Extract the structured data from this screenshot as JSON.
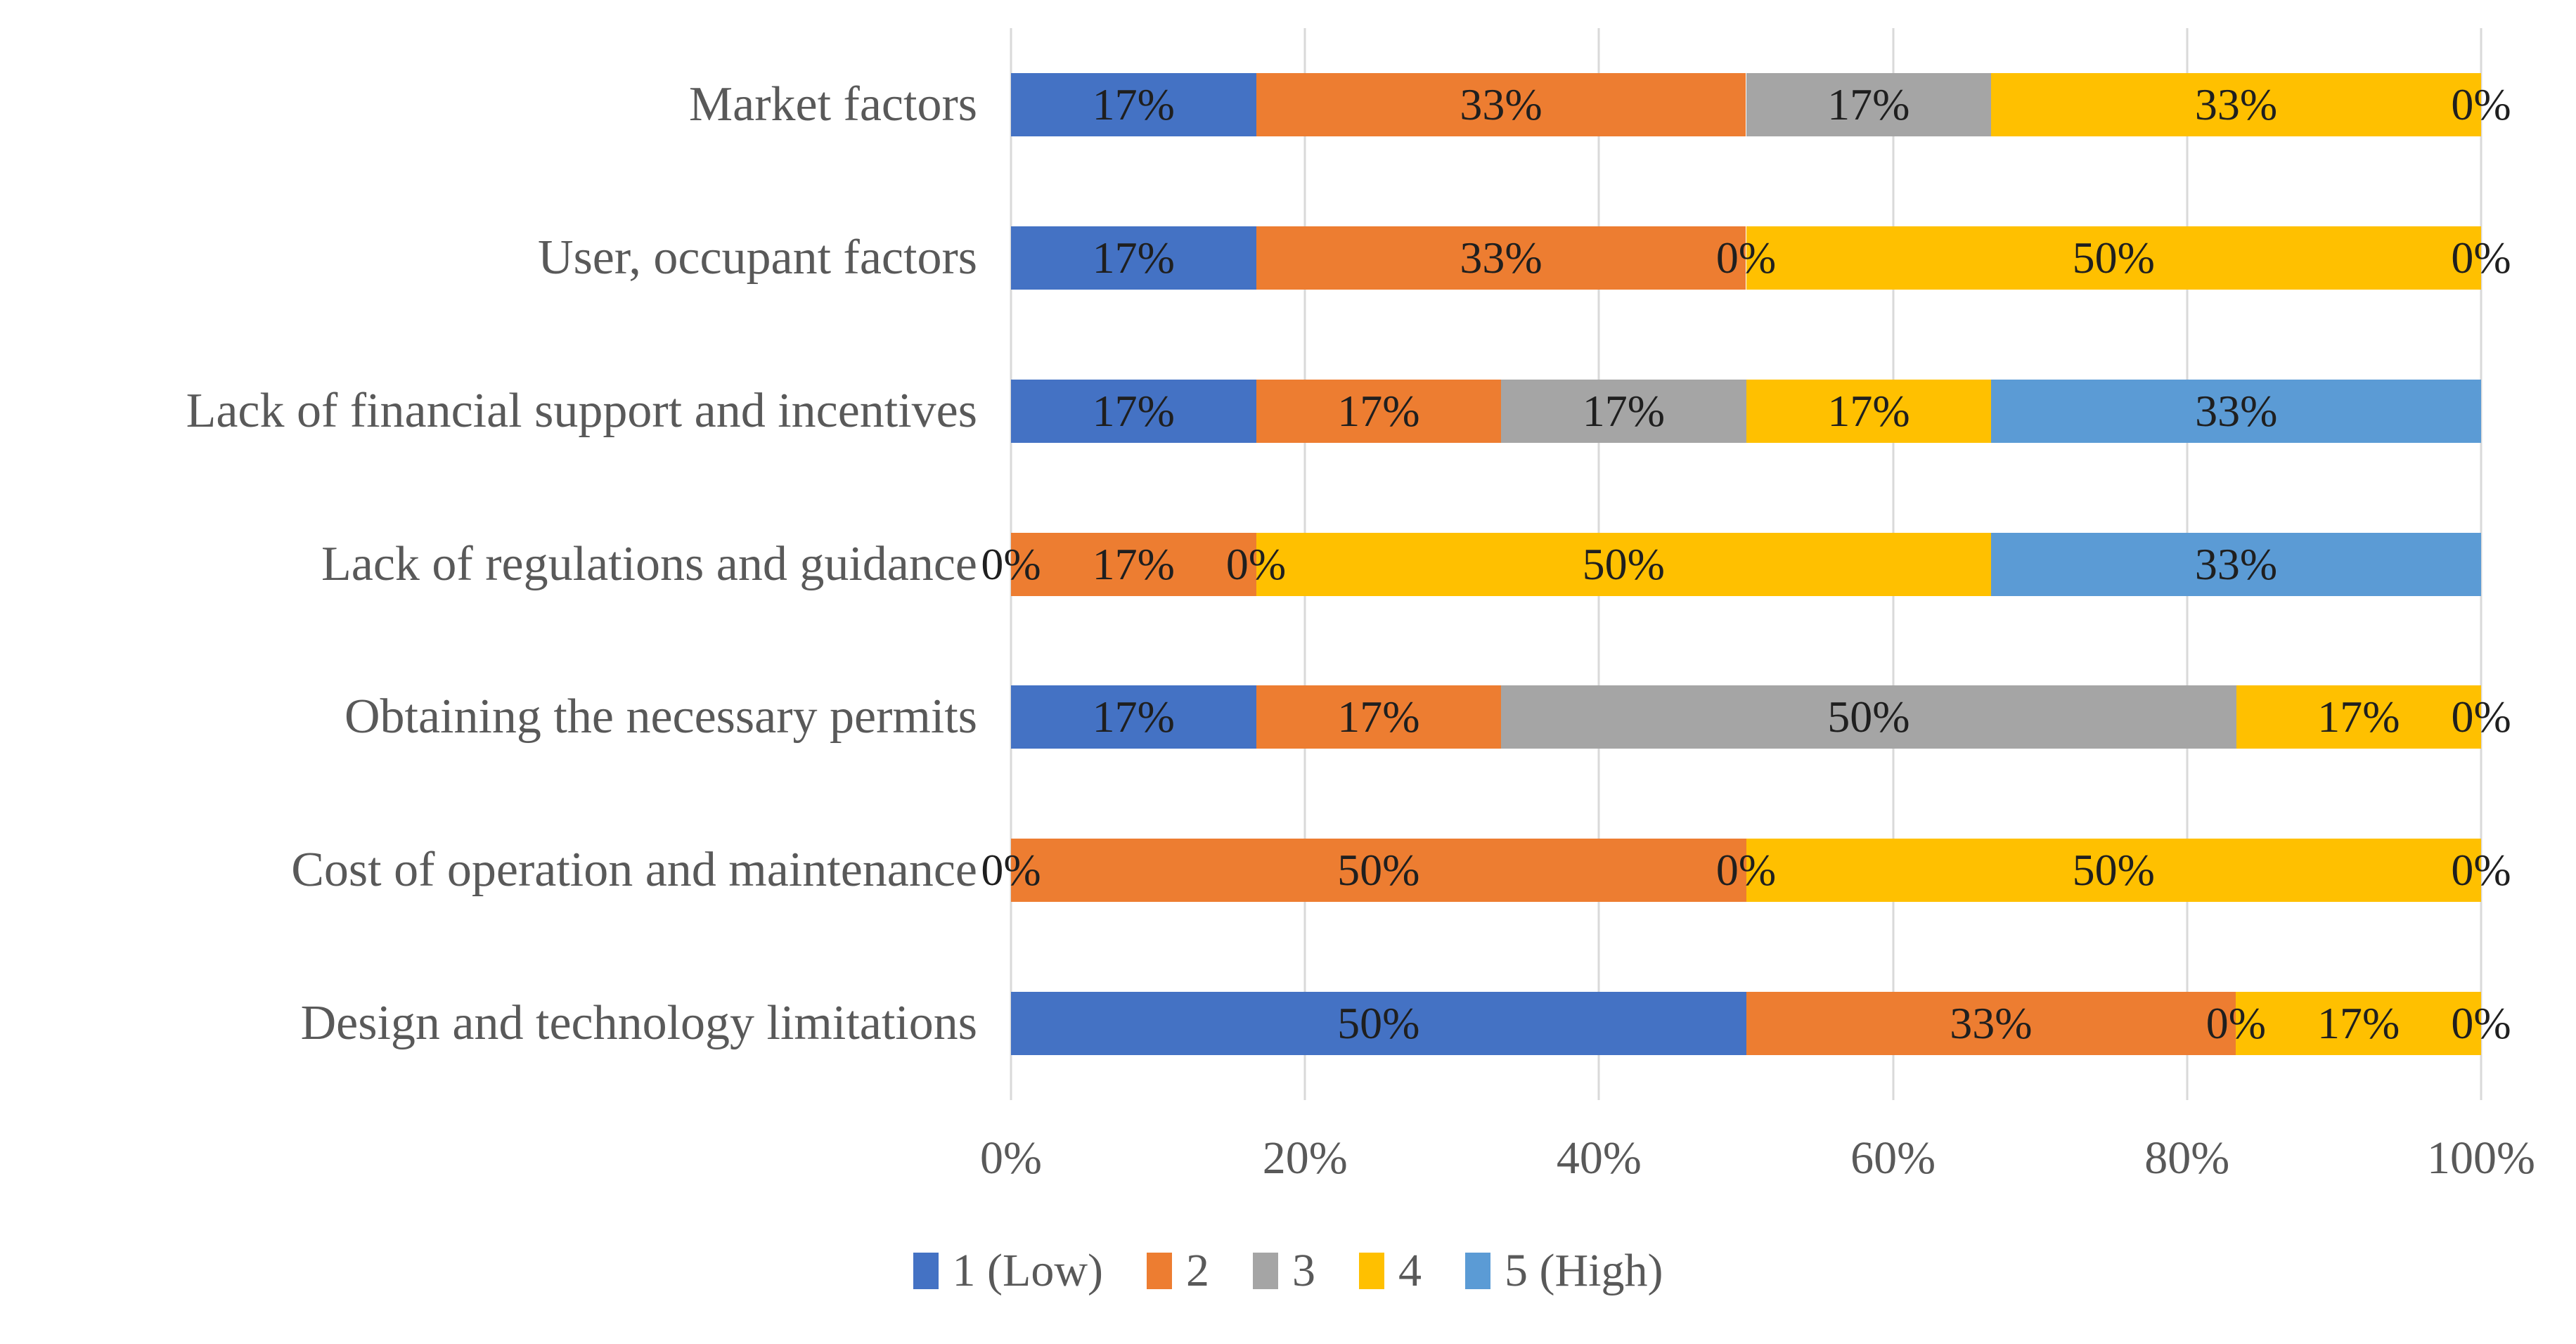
{
  "chart_data": {
    "type": "bar",
    "variant": "horizontal_stacked_100pct",
    "title": "",
    "xlabel": "",
    "ylabel": "",
    "categories": [
      "Market factors",
      "User, occupant factors",
      "Lack of financial support and incentives",
      "Lack of regulations and guidance",
      "Obtaining the necessary permits",
      "Cost of operation and maintenance",
      "Design and technology limitations"
    ],
    "series": [
      {
        "name": "1 (Low)",
        "color": "#4472C4",
        "values": [
          16.67,
          16.67,
          16.67,
          0,
          16.67,
          0,
          50
        ],
        "labels": [
          "17%",
          "17%",
          "17%",
          "0%",
          "17%",
          "0%",
          "50%"
        ]
      },
      {
        "name": "2",
        "color": "#ED7D31",
        "values": [
          33.33,
          33.33,
          16.67,
          16.67,
          16.67,
          50,
          33.33
        ],
        "labels": [
          "33%",
          "33%",
          "17%",
          "17%",
          "17%",
          "50%",
          "33%"
        ]
      },
      {
        "name": "3",
        "color": "#A5A5A5",
        "values": [
          16.67,
          0,
          16.67,
          0,
          50,
          0,
          0
        ],
        "labels": [
          "17%",
          "0%",
          "17%",
          "0%",
          "50%",
          "0%",
          "0%"
        ]
      },
      {
        "name": "4",
        "color": "#FFC000",
        "values": [
          33.33,
          50,
          16.67,
          50,
          16.67,
          50,
          16.67
        ],
        "labels": [
          "33%",
          "50%",
          "17%",
          "50%",
          "17%",
          "50%",
          "17%"
        ]
      },
      {
        "name": "5 (High)",
        "color": "#5B9BD5",
        "values": [
          0,
          0,
          33.33,
          33.33,
          0,
          0,
          0
        ],
        "labels": [
          "0%",
          "0%",
          "33%",
          "33%",
          "0%",
          "0%",
          "0%"
        ]
      }
    ],
    "x_axis": {
      "tick_labels": [
        "0%",
        "20%",
        "40%",
        "60%",
        "80%",
        "100%"
      ],
      "tick_values": [
        0,
        20,
        40,
        60,
        80,
        100
      ],
      "min": 0,
      "max": 100
    },
    "legend": {
      "position": "bottom",
      "entries": [
        "1 (Low)",
        "2",
        "3",
        "4",
        "5 (High)"
      ]
    },
    "grid": true
  },
  "colors": {
    "gridline": "#D9D9D9",
    "axis_text": "#595959",
    "category_text": "#595959",
    "data_label_text": "#1f1f1f",
    "background": "#FFFFFF"
  }
}
